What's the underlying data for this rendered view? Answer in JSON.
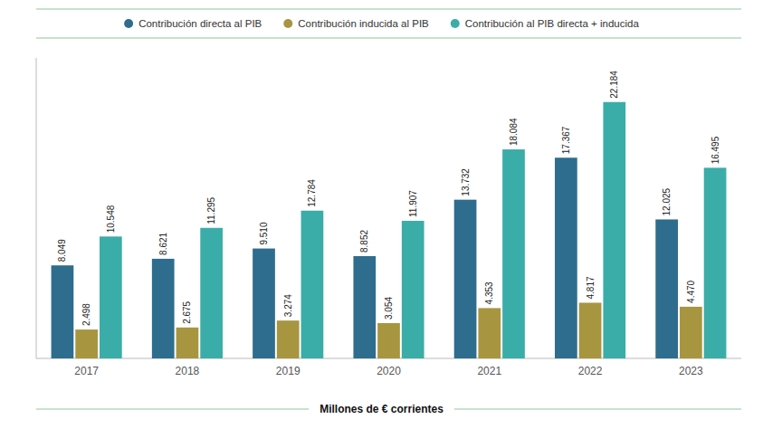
{
  "chart_data": {
    "type": "bar",
    "x_label": "Millones de € corrientes",
    "categories": [
      "2017",
      "2018",
      "2019",
      "2020",
      "2021",
      "2022",
      "2023"
    ],
    "series": [
      {
        "name": "Contribución directa al PIB",
        "color": "#2E6D8E",
        "values": [
          8049,
          8621,
          9510,
          8852,
          13732,
          17367,
          12025
        ],
        "value_labels": [
          "8.049",
          "8.621",
          "9.510",
          "8.852",
          "13.732",
          "17.367",
          "12.025"
        ]
      },
      {
        "name": "Contribución inducida al PIB",
        "color": "#A89540",
        "values": [
          2498,
          2675,
          3274,
          3054,
          4353,
          4817,
          4470
        ],
        "value_labels": [
          "2.498",
          "2.675",
          "3.274",
          "3.054",
          "4.353",
          "4.817",
          "4.470"
        ]
      },
      {
        "name": "Contribución al PIB directa + inducida",
        "color": "#3AADA8",
        "values": [
          10548,
          11295,
          12784,
          11907,
          18084,
          22184,
          16495
        ],
        "value_labels": [
          "10.548",
          "11.295",
          "12.784",
          "11.907",
          "18.084",
          "22.184",
          "16.495"
        ]
      }
    ],
    "ylim": [
      0,
      26000
    ],
    "grid": false,
    "legend": "top",
    "data_labels": true,
    "tick_labels": "x"
  }
}
